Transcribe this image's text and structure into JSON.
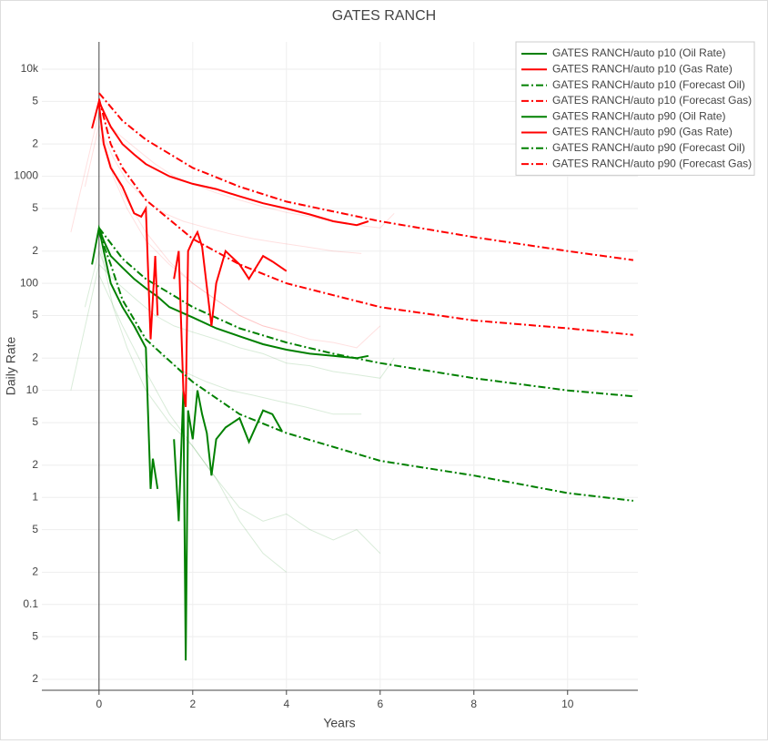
{
  "chart_data": {
    "type": "line",
    "title": "GATES RANCH",
    "x_label": "Years",
    "y_label": "Daily Rate",
    "log_y": true,
    "grid": true,
    "legend": "top-right",
    "xlim": [
      -1.22,
      11.5
    ],
    "xticks": [
      0,
      2,
      4,
      6,
      8,
      10
    ],
    "ylim": [
      0.0158,
      18000
    ],
    "yticks": [
      {
        "value": 0.02,
        "label": "2"
      },
      {
        "value": 0.05,
        "label": "5"
      },
      0.1,
      {
        "value": 0.2,
        "label": "2"
      },
      {
        "value": 0.5,
        "label": "5"
      },
      1,
      2,
      5,
      10,
      {
        "value": 20,
        "label": "2"
      },
      {
        "value": 50,
        "label": "5"
      },
      100,
      {
        "value": 200,
        "label": "2"
      },
      {
        "value": 500,
        "label": "5"
      },
      1000,
      {
        "value": 2000,
        "label": "2"
      },
      {
        "value": 5000,
        "label": "5"
      },
      {
        "value": 10000,
        "label": "10k"
      }
    ],
    "series": [
      {
        "color": "rgba(0,128,0,0.15)",
        "x": [
          -0.3,
          0,
          0.3,
          0.6,
          1,
          1.4,
          1.8,
          2.3,
          2.8,
          3.3,
          3.8,
          4.4,
          5,
          5.6
        ],
        "values": [
          60,
          200,
          90,
          50,
          30,
          20,
          15,
          12,
          10,
          9,
          8,
          7,
          6,
          6
        ]
      },
      {
        "color": "rgba(0,128,0,0.15)",
        "x": [
          0,
          0.3,
          0.6,
          1,
          1.5,
          2,
          2.5,
          3,
          3.5,
          4,
          4.5,
          5,
          5.5,
          6
        ],
        "values": [
          250,
          60,
          25,
          10,
          5,
          3,
          1.5,
          0.8,
          0.6,
          0.7,
          0.5,
          0.4,
          0.5,
          0.3
        ]
      },
      {
        "color": "rgba(0,128,0,0.15)",
        "x": [
          -0.6,
          0,
          0.4,
          0.8,
          1.2,
          1.6,
          2,
          2.5,
          3,
          3.5,
          4,
          4.5,
          5,
          5.5,
          6,
          6.3
        ],
        "values": [
          10,
          150,
          100,
          70,
          50,
          40,
          35,
          30,
          25,
          22,
          18,
          17,
          15,
          14,
          13,
          20
        ]
      },
      {
        "color": "rgba(0,128,0,0.15)",
        "x": [
          0,
          0.5,
          1,
          1.5,
          2,
          2.5,
          3,
          3.5,
          4
        ],
        "values": [
          120,
          40,
          15,
          6,
          3,
          1.5,
          0.6,
          0.3,
          0.2
        ]
      },
      {
        "color": "rgba(255,0,0,0.12)",
        "x": [
          -0.3,
          0,
          0.3,
          0.6,
          1,
          1.4,
          1.8,
          2.3,
          2.8,
          3.3,
          3.8,
          4.4,
          5,
          5.6
        ],
        "values": [
          800,
          3000,
          1500,
          900,
          600,
          450,
          380,
          330,
          290,
          260,
          240,
          220,
          200,
          190
        ]
      },
      {
        "color": "rgba(255,0,0,0.12)",
        "x": [
          0,
          0.3,
          0.6,
          1,
          1.5,
          2,
          2.5,
          3,
          3.5,
          4,
          4.5,
          5,
          5.5,
          6
        ],
        "values": [
          3500,
          1000,
          500,
          250,
          150,
          100,
          70,
          50,
          40,
          35,
          30,
          28,
          25,
          40
        ]
      },
      {
        "color": "rgba(255,0,0,0.12)",
        "x": [
          -0.6,
          0,
          0.4,
          0.8,
          1.2,
          1.6,
          2,
          2.5,
          3,
          3.5,
          4,
          4.5,
          5,
          5.5,
          6,
          6.3
        ],
        "values": [
          300,
          4000,
          2500,
          1800,
          1300,
          1000,
          850,
          700,
          600,
          520,
          460,
          420,
          380,
          350,
          330,
          450
        ]
      },
      {
        "color": "rgba(255,0,0,0.12)",
        "x": [
          0,
          0.5,
          1,
          1.5,
          2,
          2.5,
          3,
          3.5,
          4
        ],
        "values": [
          2500,
          700,
          300,
          160,
          100,
          70,
          50,
          40,
          35
        ]
      },
      {
        "name": "GATES RANCH/auto p10 (Oil Rate)",
        "color": "#008000",
        "dash": "solid",
        "x": [
          -0.15,
          0,
          0.1,
          0.25,
          0.5,
          0.75,
          1,
          1.25,
          1.5,
          2,
          2.5,
          3,
          3.5,
          4,
          4.5,
          5,
          5.5,
          5.75
        ],
        "values": [
          150,
          330,
          250,
          180,
          140,
          110,
          90,
          75,
          60,
          48,
          38,
          32,
          27,
          24,
          22,
          21,
          20,
          21
        ]
      },
      {
        "name": "GATES RANCH/auto p10 (Gas Rate)",
        "color": "#ff0000",
        "dash": "solid",
        "x": [
          -0.15,
          0,
          0.1,
          0.25,
          0.5,
          0.75,
          1,
          1.5,
          2,
          2.5,
          3,
          3.5,
          4,
          4.5,
          5,
          5.5,
          5.75
        ],
        "values": [
          2800,
          5000,
          4000,
          2900,
          2000,
          1600,
          1300,
          1000,
          850,
          760,
          650,
          560,
          500,
          440,
          380,
          350,
          380
        ]
      },
      {
        "name": "GATES RANCH/auto p10 (Forecast Oil)",
        "color": "#008000",
        "dash": "dashdot",
        "x": [
          0,
          0.5,
          1,
          2,
          3,
          4,
          5,
          6,
          8,
          10,
          11.4
        ],
        "values": [
          330,
          170,
          110,
          60,
          38,
          28,
          22,
          18,
          13,
          10,
          8.8
        ]
      },
      {
        "name": "GATES RANCH/auto p10 (Forecast Gas)",
        "color": "#ff0000",
        "dash": "dashdot",
        "x": [
          0,
          0.5,
          1,
          2,
          3,
          4,
          6,
          8,
          10,
          11.4
        ],
        "values": [
          6000,
          3300,
          2200,
          1200,
          800,
          580,
          380,
          270,
          200,
          165
        ]
      },
      {
        "name": "GATES RANCH/auto p90 (Oil Rate)",
        "color": "#008000",
        "dash": "solid",
        "x": [
          0,
          0.1,
          0.25,
          0.5,
          0.75,
          1,
          1.1,
          1.15,
          1.25,
          1.3,
          1.6,
          1.7,
          1.8,
          1.85,
          1.9,
          2,
          2.1,
          2.2,
          2.3,
          2.4,
          2.5,
          2.7,
          3,
          3.2,
          3.5,
          3.7,
          3.9
        ],
        "values": [
          330,
          200,
          100,
          60,
          40,
          25,
          1.2,
          2.3,
          1.2,
          null,
          3.5,
          0.6,
          10,
          0.03,
          6.5,
          3.5,
          10,
          6,
          4,
          1.6,
          3.5,
          4.5,
          5.5,
          3.3,
          6.5,
          6,
          4.2
        ]
      },
      {
        "name": "GATES RANCH/auto p90 (Gas Rate)",
        "color": "#ff0000",
        "dash": "solid",
        "x": [
          0,
          0.1,
          0.25,
          0.5,
          0.75,
          0.9,
          1,
          1.1,
          1.2,
          1.25,
          1.3,
          1.6,
          1.7,
          1.8,
          1.85,
          1.9,
          2,
          2.1,
          2.2,
          2.4,
          2.5,
          2.7,
          3,
          3.2,
          3.5,
          3.7,
          4
        ],
        "values": [
          4700,
          2000,
          1200,
          800,
          450,
          420,
          500,
          30,
          180,
          50,
          null,
          110,
          200,
          10,
          7,
          200,
          250,
          300,
          220,
          40,
          100,
          200,
          150,
          110,
          180,
          160,
          130
        ]
      },
      {
        "name": "GATES RANCH/auto p90 (Forecast Oil)",
        "color": "#008000",
        "dash": "dashdot",
        "x": [
          0,
          0.25,
          0.5,
          1,
          2,
          3,
          4,
          6,
          8,
          10,
          11.4
        ],
        "values": [
          300,
          150,
          70,
          30,
          12,
          6,
          4,
          2.2,
          1.6,
          1.1,
          0.93
        ]
      },
      {
        "name": "GATES RANCH/auto p90 (Forecast Gas)",
        "color": "#ff0000",
        "dash": "dashdot",
        "x": [
          0,
          0.25,
          0.5,
          1,
          2,
          3,
          4,
          6,
          8,
          10,
          11.4
        ],
        "values": [
          5300,
          2000,
          1200,
          600,
          260,
          150,
          100,
          60,
          45,
          38,
          33
        ]
      }
    ]
  }
}
